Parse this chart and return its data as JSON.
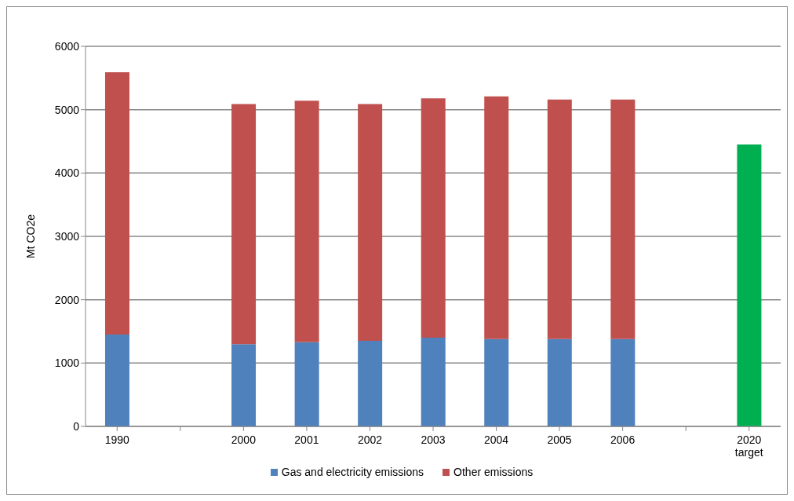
{
  "chart_data": {
    "type": "bar",
    "stacked": true,
    "ylabel": "Mt CO2e",
    "categories": [
      "1990",
      null,
      "2000",
      "2001",
      "2002",
      "2003",
      "2004",
      "2005",
      "2006",
      null,
      "2020 target"
    ],
    "series": [
      {
        "name": "Gas and electricity emissions",
        "color": "#4f81bd",
        "values": [
          1450,
          null,
          1300,
          1330,
          1350,
          1400,
          1380,
          1380,
          1380,
          null,
          null
        ]
      },
      {
        "name": "Other emissions",
        "color": "#c0504d",
        "values": [
          4140,
          null,
          3790,
          3810,
          3740,
          3780,
          3830,
          3780,
          3780,
          null,
          null
        ]
      },
      {
        "color": "#00b050",
        "values": [
          null,
          null,
          null,
          null,
          null,
          null,
          null,
          null,
          null,
          null,
          4450
        ]
      }
    ],
    "ylim": [
      0,
      6000
    ],
    "yticks": [
      0,
      1000,
      2000,
      3000,
      4000,
      5000,
      6000
    ],
    "grid": "y",
    "legend": "bottom"
  }
}
